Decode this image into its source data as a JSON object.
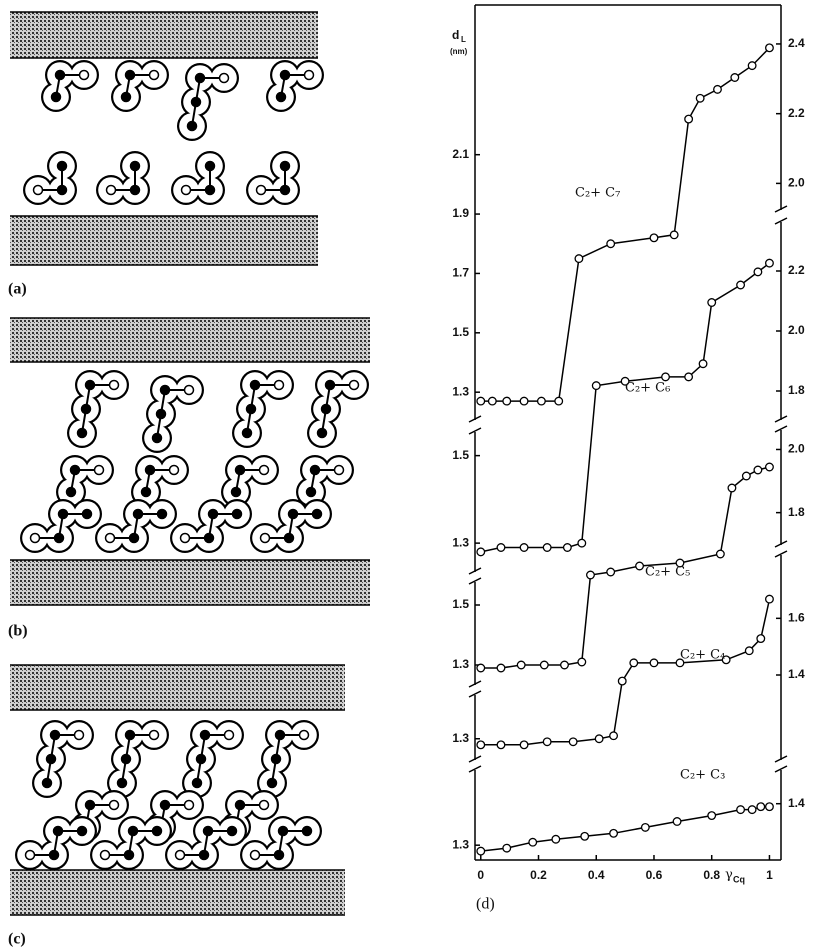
{
  "figure": {
    "panel_labels": [
      "(a)",
      "(b)",
      "(c)",
      "(d)"
    ]
  },
  "chart_data": [
    {
      "type": "line",
      "label": "C₂+ C₇",
      "color": "#000000",
      "y_label": "d",
      "y_label_sub": "L",
      "y_unit": "(nm)",
      "x": [
        0,
        0.04,
        0.09,
        0.15,
        0.21,
        0.27,
        0.34,
        0.45,
        0.6,
        0.67,
        0.72,
        0.76,
        0.82,
        0.88,
        0.94,
        1
      ],
      "values": [
        1.27,
        1.27,
        1.27,
        1.27,
        1.27,
        1.27,
        1.75,
        1.8,
        1.82,
        1.83,
        2.22,
        2.29,
        2.32,
        2.36,
        2.4,
        2.46
      ],
      "ylim": [
        1.24,
        2.52
      ],
      "yticks": [
        1.3,
        1.5,
        1.7,
        1.9,
        2.1
      ],
      "y2lim": [
        1.35,
        2.44
      ],
      "y2ticks": [
        {
          "value": 2,
          "label": "2.0"
        },
        2.2,
        2.4
      ]
    },
    {
      "type": "line",
      "label": "C₂+ C₆",
      "color": "#000000",
      "x": [
        0,
        0.07,
        0.15,
        0.23,
        0.3,
        0.35,
        0.4,
        0.5,
        0.64,
        0.72,
        0.77,
        0.8,
        0.9,
        0.96,
        1
      ],
      "values": [
        1.28,
        1.29,
        1.29,
        1.29,
        1.29,
        1.3,
        1.66,
        1.67,
        1.68,
        1.68,
        1.71,
        1.85,
        1.89,
        1.92,
        1.94
      ],
      "ylim": [
        1.25,
        1.97
      ],
      "yticks": [
        1.3,
        1.5
      ],
      "y2lim": [
        1.22,
        2.27
      ],
      "y2ticks": [
        1.8,
        {
          "value": 2,
          "label": "2.0"
        },
        2.2
      ]
    },
    {
      "type": "line",
      "label": "C₂+ C₅",
      "color": "#000000",
      "x": [
        0,
        0.07,
        0.14,
        0.22,
        0.29,
        0.35,
        0.38,
        0.45,
        0.55,
        0.69,
        0.83,
        0.87,
        0.92,
        0.96,
        1
      ],
      "values": [
        1.29,
        1.29,
        1.3,
        1.3,
        1.3,
        1.31,
        1.6,
        1.61,
        1.63,
        1.64,
        1.67,
        1.89,
        1.93,
        1.95,
        1.96
      ],
      "ylim": [
        1.25,
        2.05
      ],
      "yticks": [
        1.3,
        1.5
      ],
      "y2lim": [
        1.27,
        2.03
      ],
      "y2ticks": [
        1.8,
        {
          "value": 2,
          "label": "2.0"
        }
      ]
    },
    {
      "type": "line",
      "label": "C₂+ C₄",
      "color": "#000000",
      "x": [
        0,
        0.07,
        0.15,
        0.23,
        0.32,
        0.41,
        0.46,
        0.49,
        0.53,
        0.6,
        0.69,
        0.85,
        0.93,
        0.97,
        1
      ],
      "values": [
        1.28,
        1.28,
        1.28,
        1.29,
        1.29,
        1.3,
        1.31,
        1.49,
        1.55,
        1.55,
        1.55,
        1.56,
        1.59,
        1.63,
        1.76
      ],
      "ylim": [
        1.23,
        1.79
      ],
      "yticks": [
        1.3
      ],
      "y2lim": [
        1.1,
        1.7
      ],
      "y2ticks": [
        1.4,
        1.6
      ]
    },
    {
      "type": "line",
      "label": "C₂+ C₃",
      "color": "#000000",
      "x_label": "γ",
      "x_label_sub": "Cq",
      "x": [
        0,
        0.09,
        0.18,
        0.26,
        0.36,
        0.46,
        0.57,
        0.68,
        0.8,
        0.9,
        0.94,
        0.97,
        1
      ],
      "values": [
        1.28,
        1.29,
        1.31,
        1.32,
        1.33,
        1.34,
        1.36,
        1.38,
        1.4,
        1.42,
        1.42,
        1.43,
        1.43
      ],
      "ylim": [
        1.25,
        1.52
      ],
      "yticks": [
        1.3
      ],
      "y2lim": [
        1.21,
        1.48
      ],
      "y2ticks": [
        1.4
      ],
      "xlim": [
        -0.02,
        1.04
      ],
      "xticks": [
        0,
        0.2,
        0.4,
        0.6,
        0.8,
        1
      ]
    }
  ]
}
